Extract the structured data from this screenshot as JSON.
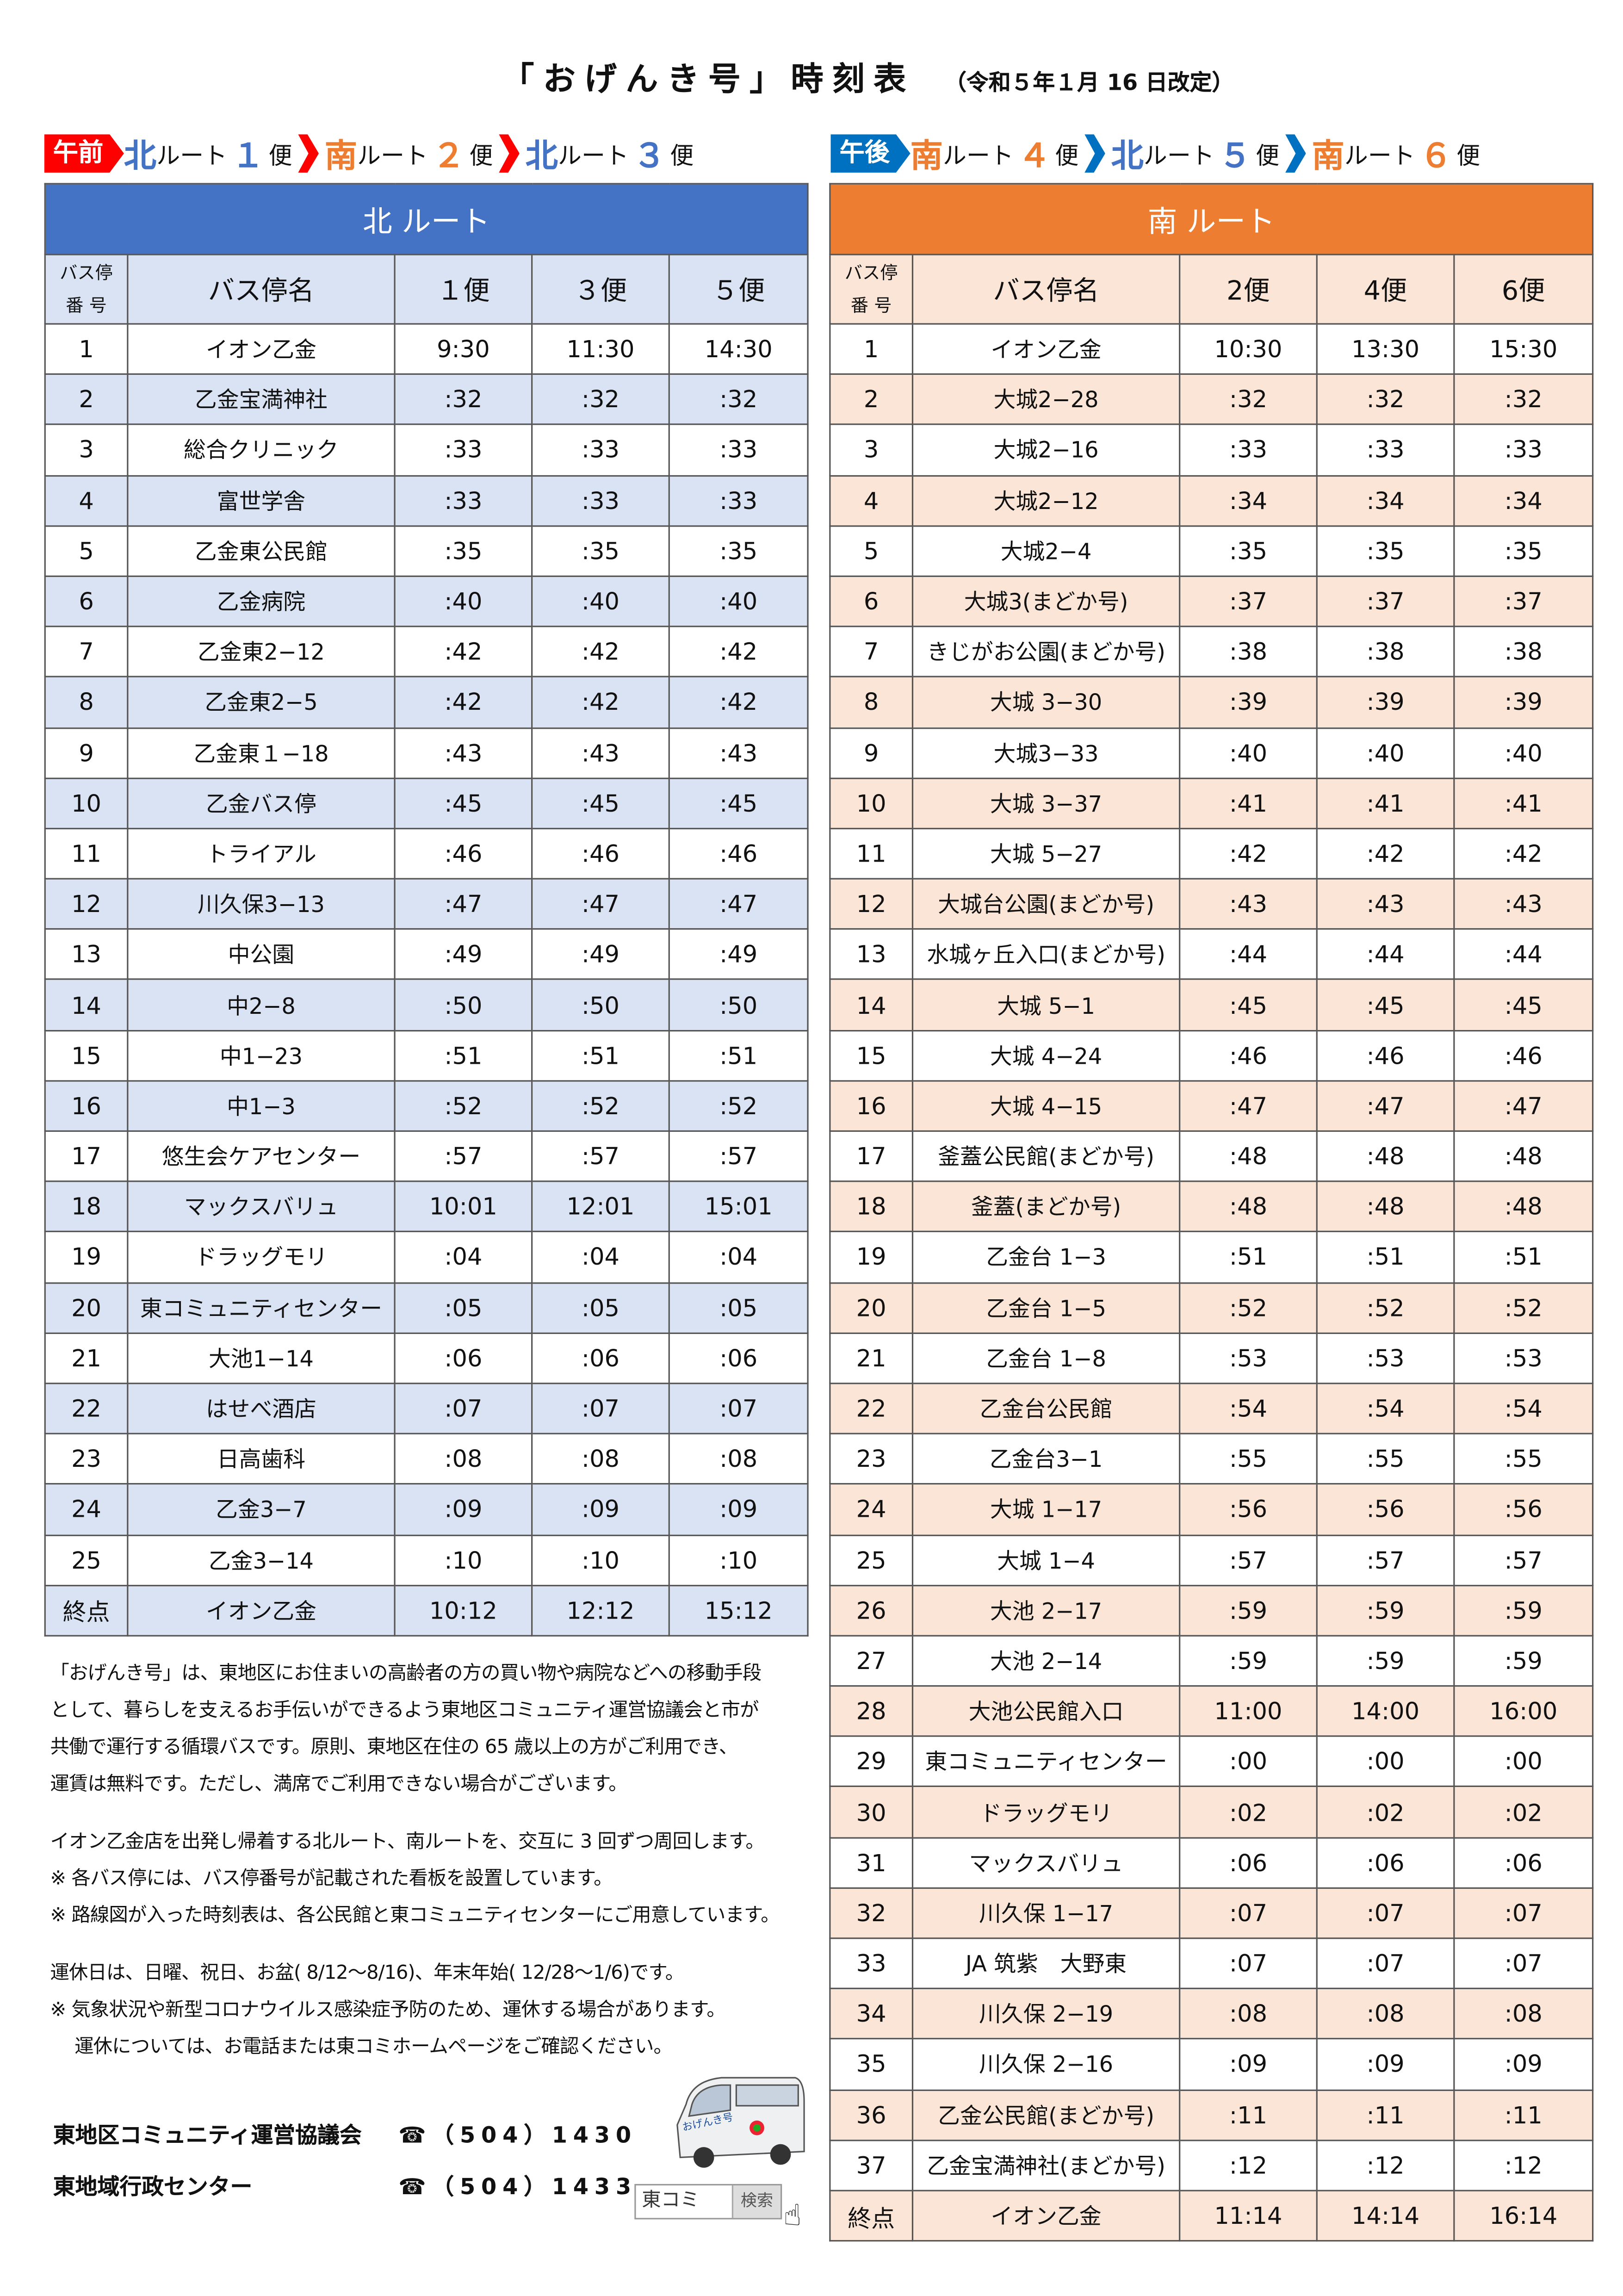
{
  "title": {
    "main": "「おげんき号」時刻表",
    "sub": "（令和５年１月 16 日改定）"
  },
  "am_bar": {
    "tag": "午前",
    "tag_color": "#ff0000",
    "chevron_color": "#ff0000",
    "items": [
      {
        "dir": "北",
        "text": "ルート",
        "num": "１",
        "unit": "便",
        "color": "#4472c4"
      },
      {
        "dir": "南",
        "text": "ルート",
        "num": "２",
        "unit": "便",
        "color": "#ed7d31"
      },
      {
        "dir": "北",
        "text": "ルート",
        "num": "３",
        "unit": "便",
        "color": "#4472c4"
      }
    ]
  },
  "pm_bar": {
    "tag": "午後",
    "tag_color": "#0070c0",
    "chevron_color": "#0070c0",
    "items": [
      {
        "dir": "南",
        "text": "ルート",
        "num": "４",
        "unit": "便",
        "color": "#ed7d31"
      },
      {
        "dir": "北",
        "text": "ルート",
        "num": "５",
        "unit": "便",
        "color": "#4472c4"
      },
      {
        "dir": "南",
        "text": "ルート",
        "num": "６",
        "unit": "便",
        "color": "#ed7d31"
      }
    ]
  },
  "north": {
    "title": "北 ルート",
    "headers": [
      "バス停\n番 号",
      "バス停名",
      "１便",
      "３便",
      "５便"
    ],
    "rows": [
      [
        "1",
        "イオン乙金",
        "9:30",
        "11:30",
        "14:30"
      ],
      [
        "2",
        "乙金宝満神社",
        ":32",
        ":32",
        ":32"
      ],
      [
        "3",
        "総合クリニック",
        ":33",
        ":33",
        ":33"
      ],
      [
        "4",
        "富世学舎",
        ":33",
        ":33",
        ":33"
      ],
      [
        "5",
        "乙金東公民館",
        ":35",
        ":35",
        ":35"
      ],
      [
        "6",
        "乙金病院",
        ":40",
        ":40",
        ":40"
      ],
      [
        "7",
        "乙金東2−12",
        ":42",
        ":42",
        ":42"
      ],
      [
        "8",
        "乙金東2−5",
        ":42",
        ":42",
        ":42"
      ],
      [
        "9",
        "乙金東１−18",
        ":43",
        ":43",
        ":43"
      ],
      [
        "10",
        "乙金バス停",
        ":45",
        ":45",
        ":45"
      ],
      [
        "11",
        "トライアル",
        ":46",
        ":46",
        ":46"
      ],
      [
        "12",
        "川久保3−13",
        ":47",
        ":47",
        ":47"
      ],
      [
        "13",
        "中公園",
        ":49",
        ":49",
        ":49"
      ],
      [
        "14",
        "中2−8",
        ":50",
        ":50",
        ":50"
      ],
      [
        "15",
        "中1−23",
        ":51",
        ":51",
        ":51"
      ],
      [
        "16",
        "中1−3",
        ":52",
        ":52",
        ":52"
      ],
      [
        "17",
        "悠生会ケアセンター",
        ":57",
        ":57",
        ":57"
      ],
      [
        "18",
        "マックスバリュ",
        "10:01",
        "12:01",
        "15:01"
      ],
      [
        "19",
        "ドラッグモリ",
        ":04",
        ":04",
        ":04"
      ],
      [
        "20",
        "東コミュニティセンター",
        ":05",
        ":05",
        ":05"
      ],
      [
        "21",
        "大池1−14",
        ":06",
        ":06",
        ":06"
      ],
      [
        "22",
        "はせべ酒店",
        ":07",
        ":07",
        ":07"
      ],
      [
        "23",
        "日高歯科",
        ":08",
        ":08",
        ":08"
      ],
      [
        "24",
        "乙金3−7",
        ":09",
        ":09",
        ":09"
      ],
      [
        "25",
        "乙金3−14",
        ":10",
        ":10",
        ":10"
      ],
      [
        "終点",
        "イオン乙金",
        "10:12",
        "12:12",
        "15:12"
      ]
    ]
  },
  "south": {
    "title": "南 ルート",
    "headers": [
      "バス停\n番 号",
      "バス停名",
      "2便",
      "4便",
      "6便"
    ],
    "rows": [
      [
        "1",
        "イオン乙金",
        "10:30",
        "13:30",
        "15:30"
      ],
      [
        "2",
        "大城2−28",
        ":32",
        ":32",
        ":32"
      ],
      [
        "3",
        "大城2−16",
        ":33",
        ":33",
        ":33"
      ],
      [
        "4",
        "大城2−12",
        ":34",
        ":34",
        ":34"
      ],
      [
        "5",
        "大城2−4",
        ":35",
        ":35",
        ":35"
      ],
      [
        "6",
        "大城3(まどか号)",
        ":37",
        ":37",
        ":37"
      ],
      [
        "7",
        "きじがお公園(まどか号)",
        ":38",
        ":38",
        ":38"
      ],
      [
        "8",
        "大城 3−30",
        ":39",
        ":39",
        ":39"
      ],
      [
        "9",
        "大城3−33",
        ":40",
        ":40",
        ":40"
      ],
      [
        "10",
        "大城 3−37",
        ":41",
        ":41",
        ":41"
      ],
      [
        "11",
        "大城 5−27",
        ":42",
        ":42",
        ":42"
      ],
      [
        "12",
        "大城台公園(まどか号)",
        ":43",
        ":43",
        ":43"
      ],
      [
        "13",
        "水城ヶ丘入口(まどか号)",
        ":44",
        ":44",
        ":44"
      ],
      [
        "14",
        "大城 5−1",
        ":45",
        ":45",
        ":45"
      ],
      [
        "15",
        "大城 4−24",
        ":46",
        ":46",
        ":46"
      ],
      [
        "16",
        "大城 4−15",
        ":47",
        ":47",
        ":47"
      ],
      [
        "17",
        "釜蓋公民館(まどか号)",
        ":48",
        ":48",
        ":48"
      ],
      [
        "18",
        "釜蓋(まどか号)",
        ":48",
        ":48",
        ":48"
      ],
      [
        "19",
        "乙金台 1−3",
        ":51",
        ":51",
        ":51"
      ],
      [
        "20",
        "乙金台 1−5",
        ":52",
        ":52",
        ":52"
      ],
      [
        "21",
        "乙金台 1−8",
        ":53",
        ":53",
        ":53"
      ],
      [
        "22",
        "乙金台公民館",
        ":54",
        ":54",
        ":54"
      ],
      [
        "23",
        "乙金台3−1",
        ":55",
        ":55",
        ":55"
      ],
      [
        "24",
        "大城 1−17",
        ":56",
        ":56",
        ":56"
      ],
      [
        "25",
        "大城 1−4",
        ":57",
        ":57",
        ":57"
      ],
      [
        "26",
        "大池 2−17",
        ":59",
        ":59",
        ":59"
      ],
      [
        "27",
        "大池 2−14",
        ":59",
        ":59",
        ":59"
      ],
      [
        "28",
        "大池公民館入口",
        "11:00",
        "14:00",
        "16:00"
      ],
      [
        "29",
        "東コミュニティセンター",
        ":00",
        ":00",
        ":00"
      ],
      [
        "30",
        "ドラッグモリ",
        ":02",
        ":02",
        ":02"
      ],
      [
        "31",
        "マックスバリュ",
        ":06",
        ":06",
        ":06"
      ],
      [
        "32",
        "川久保 1−17",
        ":07",
        ":07",
        ":07"
      ],
      [
        "33",
        "JA 筑紫　大野東",
        ":07",
        ":07",
        ":07"
      ],
      [
        "34",
        "川久保 2−19",
        ":08",
        ":08",
        ":08"
      ],
      [
        "35",
        "川久保 2−16",
        ":09",
        ":09",
        ":09"
      ],
      [
        "36",
        "乙金公民館(まどか号)",
        ":11",
        ":11",
        ":11"
      ],
      [
        "37",
        "乙金宝満神社(まどか号)",
        ":12",
        ":12",
        ":12"
      ],
      [
        "終点",
        "イオン乙金",
        "11:14",
        "14:14",
        "16:14"
      ]
    ]
  },
  "info": {
    "p1": [
      "「おげんき号」は、東地区にお住まいの高齢者の方の買い物や病院などへの移動手段",
      "として、暮らしを支えるお手伝いができるよう東地区コミュニティ運営協議会と市が",
      "共働で運行する循環バスです。原則、東地区在住の 65 歳以上の方がご利用でき、",
      "運賃は無料です。ただし、満席でご利用できない場合がございます。"
    ],
    "p2": [
      "イオン乙金店を出発し帰着する北ルート、南ルートを、交互に 3 回ずつ周回します。",
      "※ 各バス停には、バス停番号が記載された看板を設置しています。",
      "※ 路線図が入った時刻表は、各公民館と東コミュニティセンターにご用意しています。"
    ],
    "p3": [
      "運休日は、日曜、祝日、お盆( 8/12～8/16)、年末年始( 12/28～1/6)です。",
      "※ 気象状況や新型コロナウイルス感染症予防のため、運休する場合があります。",
      "　 運休については、お電話または東コミホームページをご確認ください。"
    ]
  },
  "contacts": [
    {
      "name": "東地区コミュニティ運営協議会",
      "tel": "☎（504）1430"
    },
    {
      "name": "東地域行政センター",
      "tel": "☎（504）1433"
    }
  ],
  "van_sign": "おげんき号",
  "search": {
    "query": "東コミ",
    "button": "検索"
  }
}
